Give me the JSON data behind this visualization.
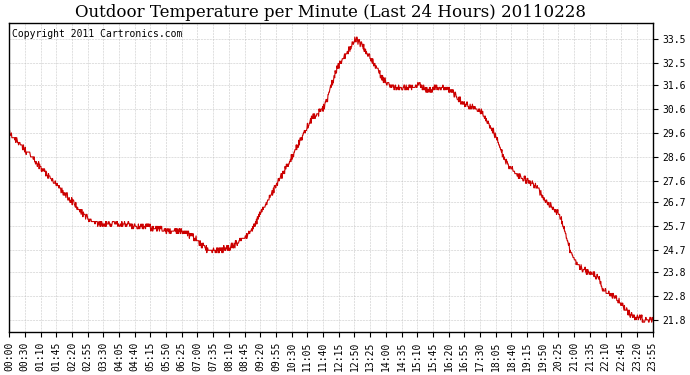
{
  "title": "Outdoor Temperature per Minute (Last 24 Hours) 20110228",
  "copyright_text": "Copyright 2011 Cartronics.com",
  "line_color": "#cc0000",
  "bg_color": "#ffffff",
  "plot_bg_color": "#ffffff",
  "grid_color": "#bbbbbb",
  "yticks": [
    21.8,
    22.8,
    23.8,
    24.7,
    25.7,
    26.7,
    27.6,
    28.6,
    29.6,
    30.6,
    31.6,
    32.5,
    33.5
  ],
  "ymin": 21.3,
  "ymax": 34.2,
  "xtick_labels": [
    "00:00",
    "00:30",
    "01:10",
    "01:45",
    "02:20",
    "02:55",
    "03:30",
    "04:05",
    "04:40",
    "05:15",
    "05:50",
    "06:25",
    "07:00",
    "07:35",
    "08:10",
    "08:45",
    "09:20",
    "09:55",
    "10:30",
    "11:05",
    "11:40",
    "12:15",
    "12:50",
    "13:25",
    "14:00",
    "14:35",
    "15:10",
    "15:45",
    "16:20",
    "16:55",
    "17:30",
    "18:05",
    "18:40",
    "19:15",
    "19:50",
    "20:25",
    "21:00",
    "21:35",
    "22:10",
    "22:45",
    "23:20",
    "23:55"
  ],
  "title_fontsize": 12,
  "tick_fontsize": 7,
  "copyright_fontsize": 7,
  "key_hours": [
    0,
    0.5,
    1.0,
    1.3,
    1.7,
    2.3,
    3.0,
    3.5,
    4.0,
    4.5,
    5.0,
    5.5,
    6.0,
    6.3,
    6.8,
    7.5,
    8.0,
    8.5,
    9.0,
    9.5,
    10.0,
    10.5,
    11.0,
    11.3,
    11.6,
    11.8,
    12.0,
    12.2,
    12.5,
    12.75,
    12.9,
    13.2,
    13.6,
    14.0,
    14.5,
    15.0,
    15.3,
    15.6,
    16.0,
    16.5,
    17.0,
    17.5,
    18.0,
    18.5,
    19.0,
    19.5,
    20.0,
    20.5,
    21.0,
    21.3,
    21.6,
    22.0,
    22.2,
    22.5,
    22.8,
    23.2,
    23.6,
    24.0
  ],
  "key_temps": [
    29.6,
    29.0,
    28.4,
    28.0,
    27.5,
    26.8,
    26.0,
    25.8,
    25.8,
    25.75,
    25.7,
    25.6,
    25.5,
    25.5,
    25.3,
    24.7,
    24.75,
    25.0,
    25.5,
    26.5,
    27.5,
    28.5,
    29.6,
    30.2,
    30.5,
    30.8,
    31.5,
    32.2,
    32.8,
    33.2,
    33.5,
    33.2,
    32.5,
    31.8,
    31.5,
    31.5,
    31.6,
    31.4,
    31.5,
    31.3,
    30.8,
    30.6,
    29.8,
    28.5,
    27.8,
    27.5,
    26.8,
    26.2,
    24.5,
    24.0,
    23.8,
    23.5,
    23.0,
    22.8,
    22.5,
    22.0,
    21.85,
    21.8
  ]
}
